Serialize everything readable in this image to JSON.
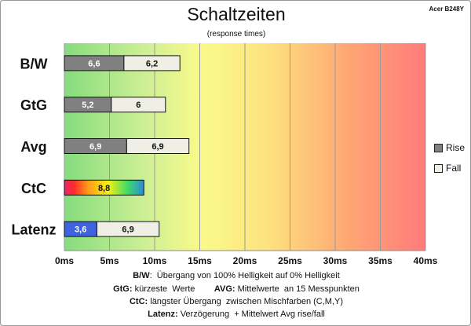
{
  "title": "Schaltzeiten",
  "subtitle": "(response times)",
  "brand": "Acer B248Y",
  "legend": {
    "rise": "Rise",
    "fall": "Fall"
  },
  "colors": {
    "rise": "#808080",
    "fall": "#efefe6",
    "latenz_rise": "#3f63dc"
  },
  "footer": [
    [
      {
        "t": "B/W",
        "b": true
      },
      {
        "t": ":  Übergang von 100% Helligkeit auf 0% Helligkeit",
        "b": false
      }
    ],
    [
      {
        "t": "GtG:",
        "b": true
      },
      {
        "t": " kürzeste  Werte        ",
        "b": false
      },
      {
        "t": "AVG:",
        "b": true
      },
      {
        "t": " Mittelwerte  an 15 Messpunkten",
        "b": false
      }
    ],
    [
      {
        "t": "CtC:",
        "b": true
      },
      {
        "t": " längster Übergang  zwischen Mischfarben (C,M,Y)",
        "b": false
      }
    ],
    [
      {
        "t": "Latenz:",
        "b": true
      },
      {
        "t": " Verzögerung  + Mittelwert Avg rise/fall",
        "b": false
      }
    ]
  ],
  "chart_data": {
    "type": "bar",
    "orientation": "horizontal",
    "stacked": true,
    "categories": [
      "B/W",
      "GtG",
      "Avg",
      "CtC",
      "Latenz"
    ],
    "series": [
      {
        "name": "Rise",
        "values": [
          6.6,
          5.2,
          6.9,
          8.8,
          3.6
        ]
      },
      {
        "name": "Fall",
        "values": [
          6.2,
          6,
          6.9,
          null,
          6.9
        ]
      }
    ],
    "value_labels": {
      "Rise": [
        "6,6",
        "5,2",
        "6,9",
        "8,8",
        "3,6"
      ],
      "Fall": [
        "6,2",
        "6",
        "6,9",
        "",
        "6,9"
      ]
    },
    "xticks": [
      "0ms",
      "5ms",
      "10ms",
      "15ms",
      "20ms",
      "25ms",
      "30ms",
      "35ms",
      "40ms"
    ],
    "xlim": [
      0,
      40
    ],
    "grid": true,
    "background": "gradient green to yellow to red",
    "legend_position": "right"
  }
}
